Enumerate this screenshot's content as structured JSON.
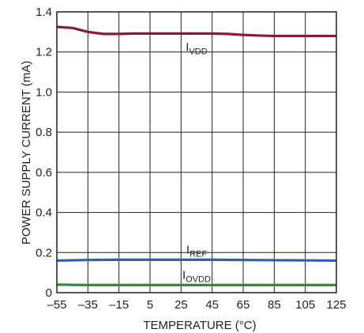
{
  "chart_data": {
    "type": "line",
    "xlabel": "TEMPERATURE (°C)",
    "ylabel": "POWER SUPPLY CURRENT (mA)",
    "xlim": [
      -55,
      125
    ],
    "ylim": [
      0,
      1.4
    ],
    "x_ticks": [
      -55,
      -35,
      -15,
      5,
      25,
      45,
      65,
      85,
      105,
      125
    ],
    "x_tick_labels": [
      "–55",
      "–35",
      "–15",
      "5",
      "25",
      "45",
      "65",
      "85",
      "105",
      "125"
    ],
    "y_ticks": [
      0,
      0.2,
      0.4,
      0.6,
      0.8,
      1.0,
      1.2,
      1.4
    ],
    "y_tick_labels": [
      "0",
      "0.2",
      "0.4",
      "0.6",
      "0.8",
      "1.0",
      "1.2",
      "1.4"
    ],
    "grid": true,
    "series": [
      {
        "name": "IVDD",
        "label_main": "I",
        "label_sub": "VDD",
        "color": "#8b1a3a",
        "x": [
          -55,
          -45,
          -35,
          -25,
          -15,
          -5,
          5,
          15,
          25,
          35,
          45,
          55,
          65,
          75,
          85,
          95,
          105,
          115,
          125
        ],
        "y": [
          1.325,
          1.32,
          1.3,
          1.29,
          1.29,
          1.292,
          1.292,
          1.292,
          1.292,
          1.292,
          1.292,
          1.29,
          1.285,
          1.282,
          1.28,
          1.28,
          1.28,
          1.28,
          1.28
        ]
      },
      {
        "name": "IREF",
        "label_main": "I",
        "label_sub": "REF",
        "color": "#3a5ba9",
        "x": [
          -55,
          -35,
          -15,
          5,
          25,
          45,
          65,
          85,
          105,
          125
        ],
        "y": [
          0.16,
          0.163,
          0.164,
          0.164,
          0.164,
          0.164,
          0.163,
          0.162,
          0.161,
          0.16
        ]
      },
      {
        "name": "IOVDD",
        "label_main": "I",
        "label_sub": "OVDD",
        "color": "#2e8b45",
        "x": [
          -55,
          -35,
          -15,
          5,
          25,
          45,
          65,
          85,
          105,
          125
        ],
        "y": [
          0.04,
          0.038,
          0.038,
          0.038,
          0.038,
          0.038,
          0.038,
          0.038,
          0.038,
          0.038
        ]
      }
    ]
  }
}
